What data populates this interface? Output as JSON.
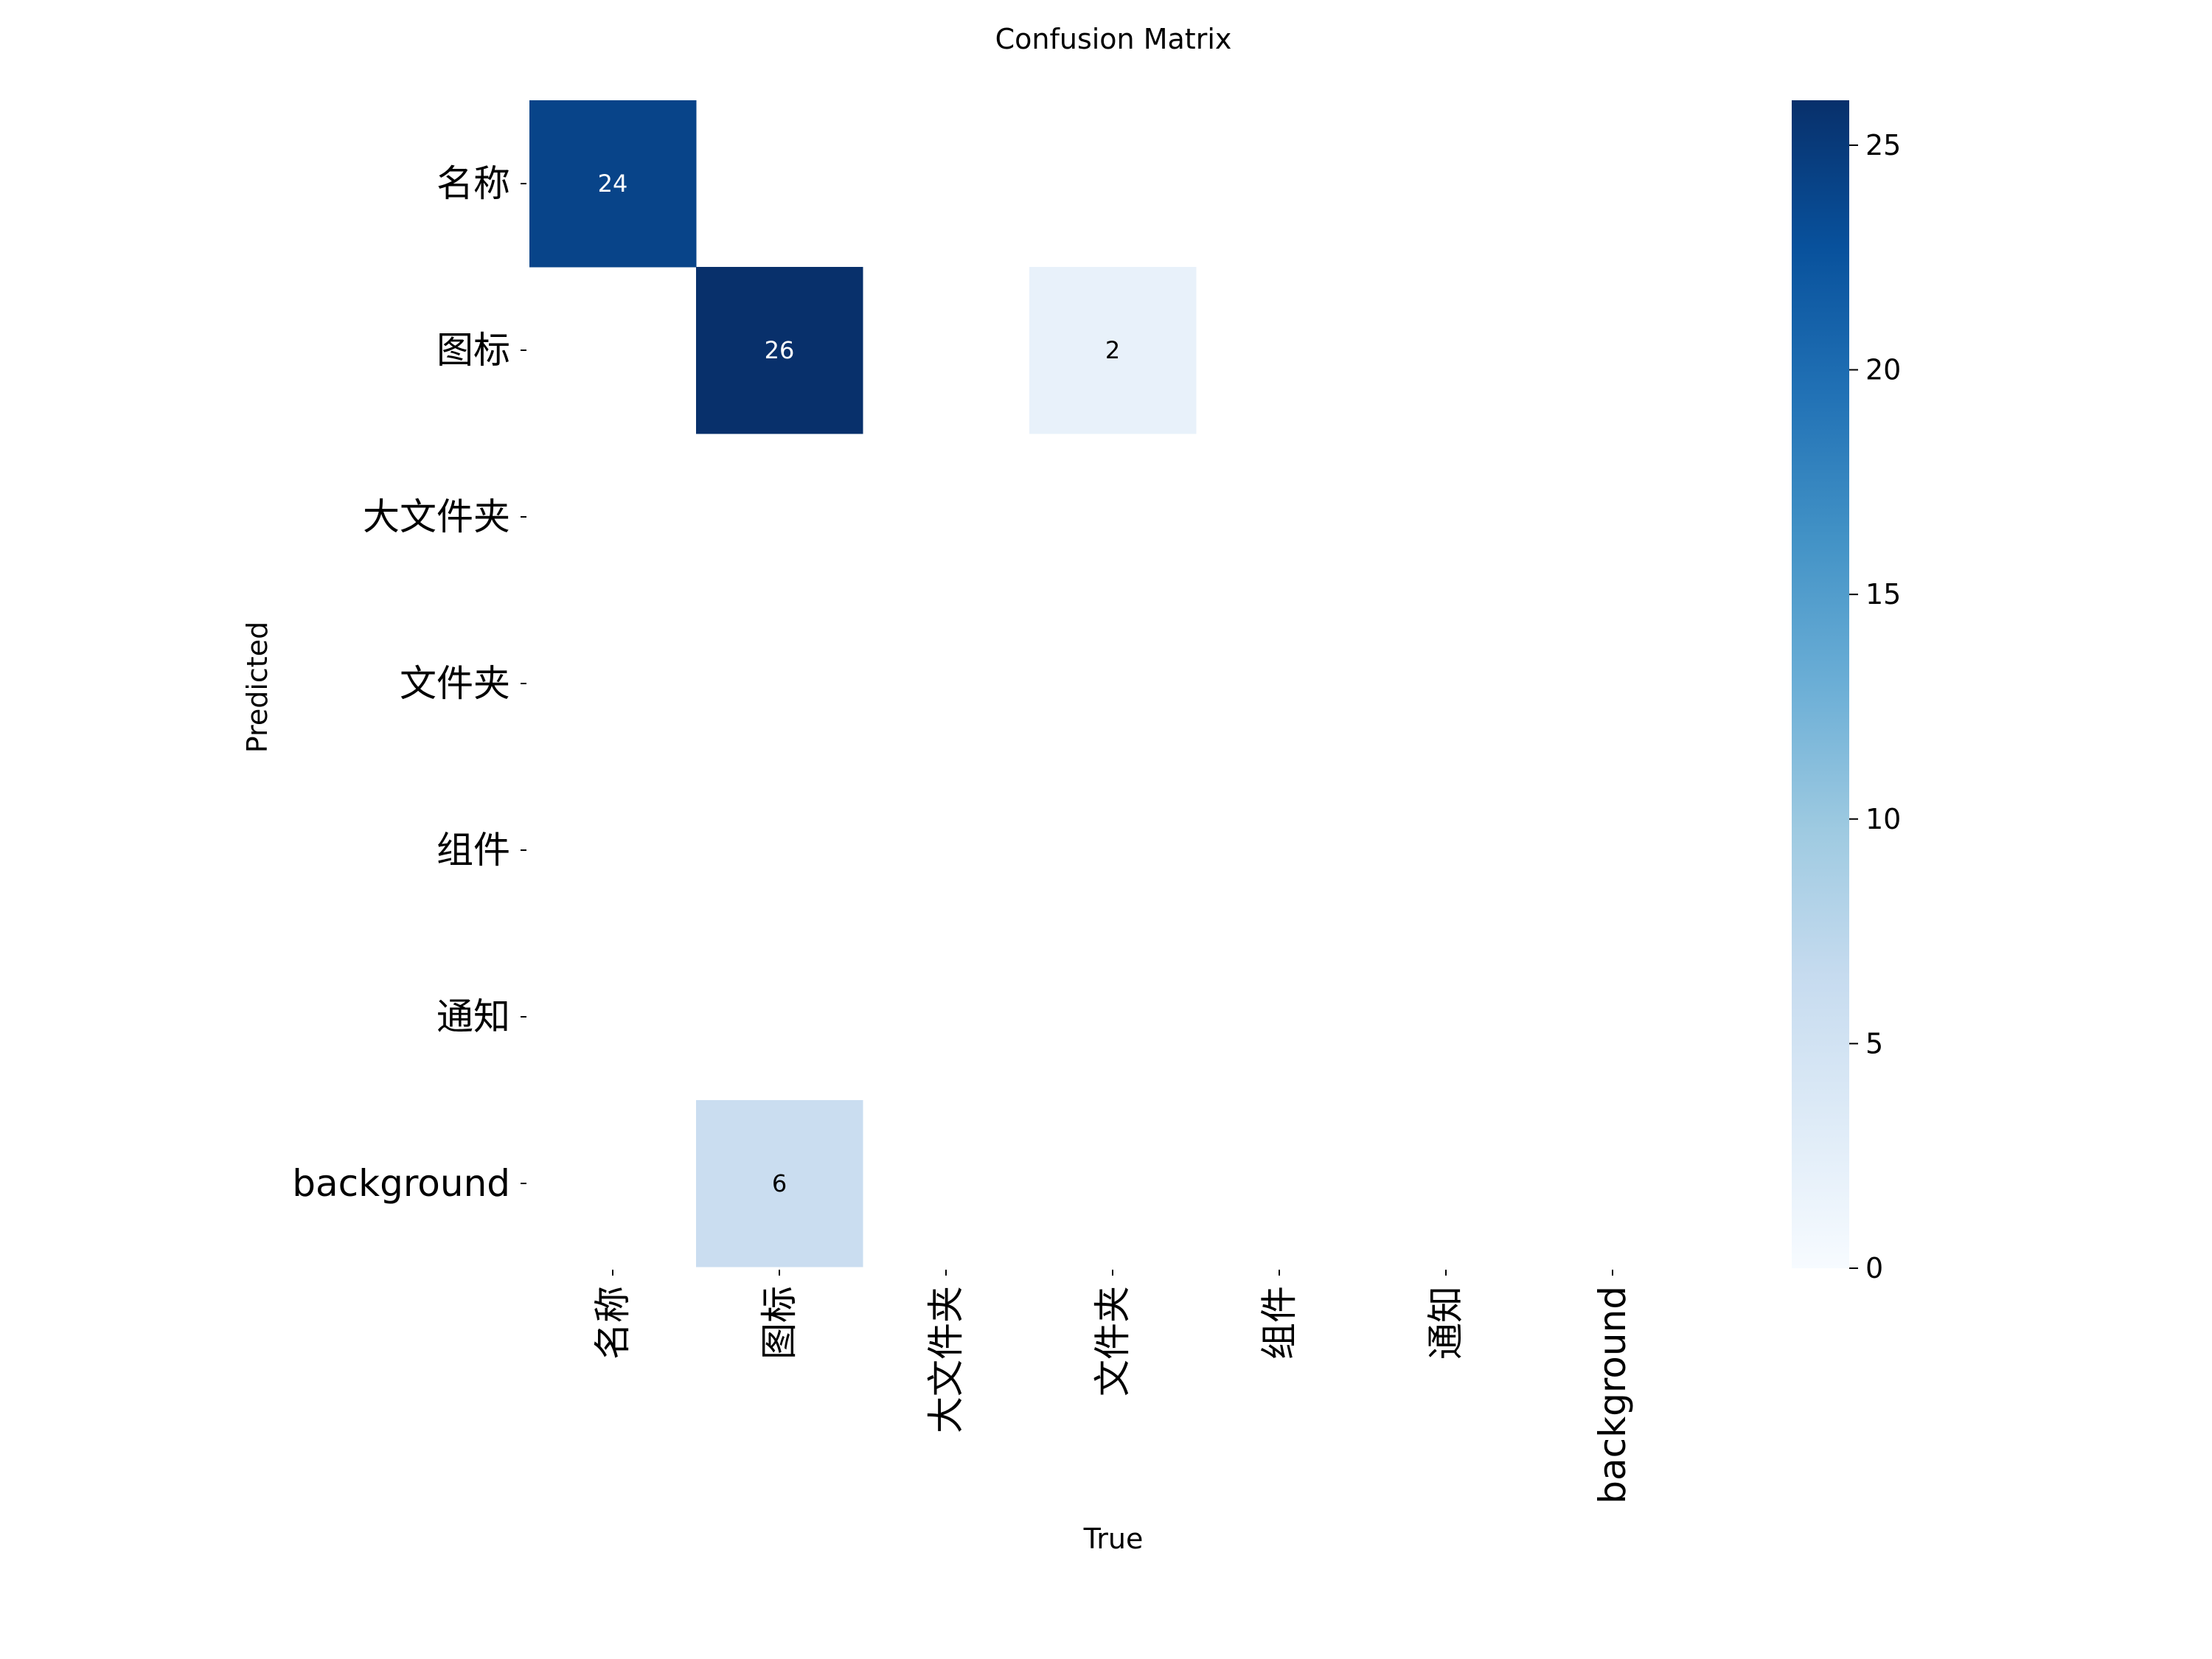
{
  "chart_data": {
    "type": "heatmap",
    "title": "Confusion Matrix",
    "xlabel": "True",
    "ylabel": "Predicted",
    "x_categories": [
      "名称",
      "图标",
      "大文件夹",
      "文件夹",
      "组件",
      "通知",
      "background"
    ],
    "y_categories": [
      "名称",
      "图标",
      "大文件夹",
      "文件夹",
      "组件",
      "通知",
      "background"
    ],
    "matrix": [
      [
        24,
        0,
        0,
        0,
        0,
        0,
        0
      ],
      [
        0,
        26,
        0,
        2,
        0,
        0,
        0
      ],
      [
        0,
        0,
        0,
        0,
        0,
        0,
        0
      ],
      [
        0,
        0,
        0,
        0,
        0,
        0,
        0
      ],
      [
        0,
        0,
        0,
        0,
        0,
        0,
        0
      ],
      [
        0,
        0,
        0,
        0,
        0,
        0,
        0
      ],
      [
        0,
        6,
        0,
        0,
        0,
        0,
        0
      ]
    ],
    "zero_cells_blank": true,
    "colormap": "Blues",
    "colorbar": {
      "range": [
        0,
        26
      ],
      "ticks": [
        0,
        5,
        10,
        15,
        20,
        25
      ]
    },
    "colorscale": [
      "#f7fbff",
      "#deebf7",
      "#c6dbef",
      "#9ecae1",
      "#6baed6",
      "#4292c6",
      "#2171b5",
      "#08519c",
      "#08306b"
    ]
  }
}
